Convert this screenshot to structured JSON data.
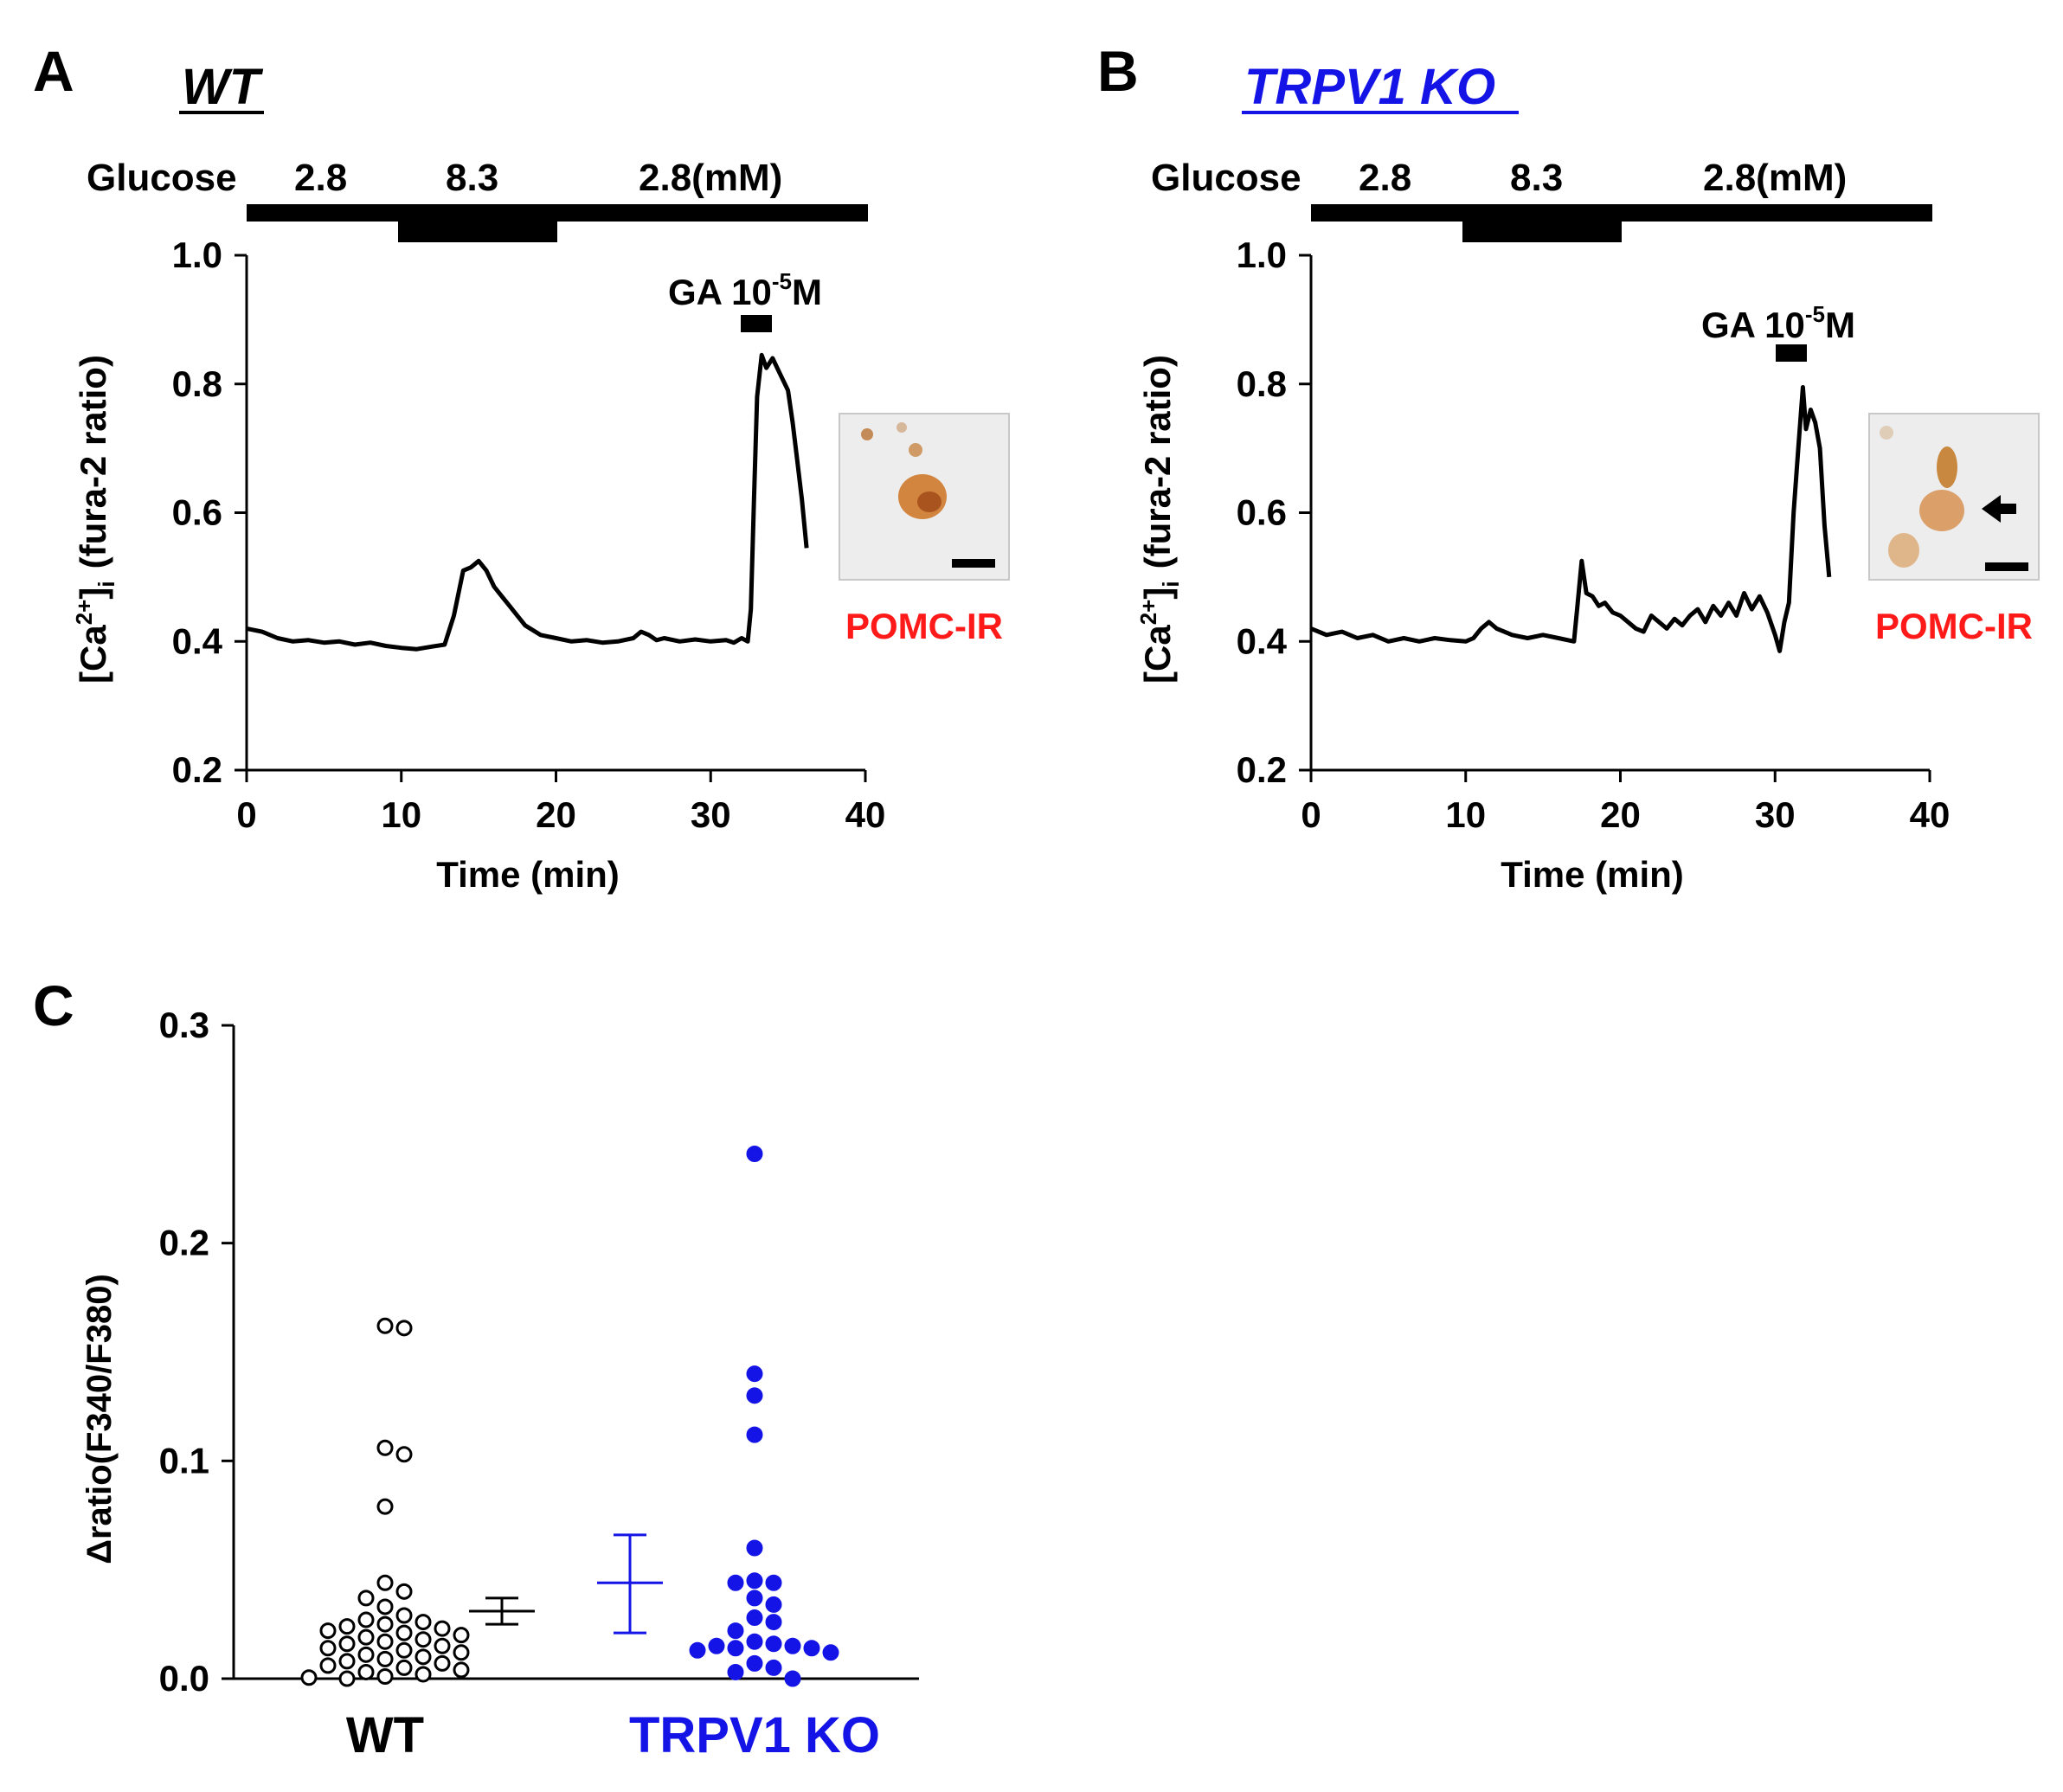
{
  "panels": {
    "a": {
      "letter": "A",
      "genotype": "WT"
    },
    "b": {
      "letter": "B",
      "genotype": "TRPV1 KO"
    },
    "c": {
      "letter": "C"
    }
  },
  "protocol": {
    "glucose_label": "Glucose",
    "glucose_low": "2.8",
    "glucose_high": "8.3",
    "glucose_low_unit": "2.8(mM)",
    "ga_label": "GA 10",
    "ga_exp": "-5",
    "ga_unit": "M",
    "ga_start_wt": 32.7,
    "ga_end_wt": 34.4,
    "ga_start_ko": 30.5,
    "ga_end_ko": 32.3,
    "high_start_min": 10,
    "high_end_min": 20
  },
  "inset": {
    "label": "POMC-IR"
  },
  "colors": {
    "ko": "#1414e6",
    "wt": "#000000",
    "pomc": "#ff1a1a"
  },
  "chart_data": [
    {
      "id": "trace-wt",
      "type": "line",
      "title": "WT",
      "xlabel": "Time (min)",
      "ylabel_main": "[Ca",
      "ylabel_sup": "2+",
      "ylabel_close": "]",
      "ylabel_sub": "i",
      "ylabel_tail": "(fura-2 ratio)",
      "xlim": [
        0,
        40
      ],
      "ylim": [
        0.2,
        1.0
      ],
      "xticks": [
        "0",
        "10",
        "20",
        "30",
        "40"
      ],
      "yticks": [
        "0.2",
        "0.4",
        "0.6",
        "0.8",
        "1.0"
      ],
      "x": [
        0,
        1,
        2,
        3,
        4,
        5,
        6,
        7,
        8,
        9,
        10,
        11,
        12,
        12.8,
        13.4,
        14,
        14.5,
        15,
        15.5,
        16,
        16.5,
        17,
        17.5,
        18,
        19,
        20,
        21,
        22,
        23,
        24,
        25,
        25.5,
        26,
        26.5,
        27,
        28,
        29,
        30,
        31,
        31.5,
        32,
        32.4,
        32.6,
        32.8,
        33.0,
        33.3,
        33.6,
        34,
        34.4,
        34.8,
        35.0,
        35.3,
        35.6,
        35.9,
        36.2
      ],
      "y": [
        0.42,
        0.415,
        0.405,
        0.4,
        0.402,
        0.398,
        0.4,
        0.395,
        0.398,
        0.393,
        0.39,
        0.388,
        0.392,
        0.395,
        0.44,
        0.51,
        0.515,
        0.525,
        0.51,
        0.485,
        0.47,
        0.455,
        0.44,
        0.425,
        0.41,
        0.405,
        0.4,
        0.402,
        0.398,
        0.4,
        0.405,
        0.415,
        0.41,
        0.402,
        0.405,
        0.4,
        0.403,
        0.4,
        0.402,
        0.398,
        0.405,
        0.4,
        0.45,
        0.62,
        0.78,
        0.845,
        0.825,
        0.84,
        0.82,
        0.8,
        0.79,
        0.74,
        0.68,
        0.62,
        0.545
      ]
    },
    {
      "id": "trace-ko",
      "type": "line",
      "title": "TRPV1 KO",
      "xlabel": "Time (min)",
      "ylabel_main": "[Ca",
      "ylabel_sup": "2+",
      "ylabel_close": "]",
      "ylabel_sub": "i",
      "ylabel_tail": "(fura-2 ratio)",
      "xlim": [
        0,
        40
      ],
      "ylim": [
        0.2,
        1.0
      ],
      "xticks": [
        "0",
        "10",
        "20",
        "30",
        "40"
      ],
      "yticks": [
        "0.2",
        "0.4",
        "0.6",
        "0.8",
        "1.0"
      ],
      "x": [
        0,
        1,
        2,
        3,
        4,
        5,
        6,
        7,
        8,
        9,
        10,
        10.5,
        11,
        11.5,
        12,
        12.5,
        13,
        14,
        15,
        16,
        17,
        17.2,
        17.5,
        17.8,
        18.2,
        18.6,
        19,
        19.5,
        20,
        20.5,
        21,
        21.5,
        22,
        22.5,
        23,
        23.5,
        24,
        24.5,
        25,
        25.5,
        26,
        26.5,
        27,
        27.5,
        28,
        28.5,
        29,
        29.5,
        30,
        30.3,
        30.6,
        30.9,
        31.2,
        31.5,
        31.8,
        32.0,
        32.3,
        32.6,
        32.9,
        33.2,
        33.5
      ],
      "y": [
        0.42,
        0.41,
        0.415,
        0.405,
        0.41,
        0.4,
        0.405,
        0.4,
        0.405,
        0.402,
        0.4,
        0.405,
        0.42,
        0.43,
        0.42,
        0.415,
        0.41,
        0.405,
        0.41,
        0.405,
        0.4,
        0.45,
        0.525,
        0.475,
        0.47,
        0.455,
        0.46,
        0.445,
        0.44,
        0.43,
        0.42,
        0.415,
        0.44,
        0.43,
        0.42,
        0.435,
        0.425,
        0.44,
        0.45,
        0.43,
        0.455,
        0.44,
        0.46,
        0.44,
        0.475,
        0.45,
        0.47,
        0.445,
        0.41,
        0.385,
        0.43,
        0.46,
        0.6,
        0.7,
        0.795,
        0.73,
        0.76,
        0.74,
        0.7,
        0.58,
        0.5
      ]
    },
    {
      "id": "scatter-delta",
      "type": "scatter",
      "ylabel": "Δratio(F340/F380)",
      "ylim": [
        0,
        0.3
      ],
      "yticks": [
        "0.0",
        "0.1",
        "0.2",
        "0.3"
      ],
      "categories": [
        "WT",
        "TRPV1 KO"
      ],
      "series": [
        {
          "name": "WT",
          "color": "#000000",
          "filled": false,
          "values": [
            0.162,
            0.161,
            0.106,
            0.103,
            0.079,
            0.044,
            0.04,
            0.037,
            0.033,
            0.029,
            0.027,
            0.026,
            0.025,
            0.024,
            0.023,
            0.022,
            0.021,
            0.02,
            0.019,
            0.018,
            0.017,
            0.016,
            0.015,
            0.014,
            0.013,
            0.012,
            0.011,
            0.01,
            0.009,
            0.008,
            0.007,
            0.006,
            0.005,
            0.004,
            0.003,
            0.002,
            0.001,
            0.0005,
            0.0
          ]
        },
        {
          "name": "TRPV1 KO",
          "color": "#1414e6",
          "filled": true,
          "values": [
            0.241,
            0.14,
            0.13,
            0.112,
            0.06,
            0.045,
            0.044,
            0.044,
            0.037,
            0.034,
            0.028,
            0.026,
            0.022,
            0.017,
            0.016,
            0.015,
            0.015,
            0.014,
            0.014,
            0.013,
            0.012,
            0.007,
            0.005,
            0.003,
            0.0
          ]
        }
      ],
      "summary": [
        {
          "name": "WT",
          "mean": 0.031,
          "low": 0.025,
          "high": 0.037
        },
        {
          "name": "TRPV1 KO",
          "mean": 0.044,
          "low": 0.021,
          "high": 0.066
        }
      ]
    }
  ]
}
